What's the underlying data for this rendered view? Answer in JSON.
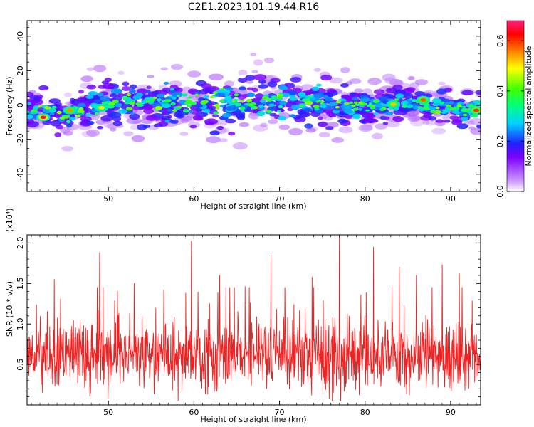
{
  "title": "C2E1.2023.101.19.44.R16",
  "chart_data": [
    {
      "type": "heatmap",
      "xlabel": "Height of straight line (km)",
      "ylabel": "Frequency (Hz)",
      "xlim": [
        40.5,
        93.5
      ],
      "ylim": [
        -50,
        49
      ],
      "x_ticks": [
        50,
        60,
        70,
        80,
        90
      ],
      "y_ticks": [
        -40,
        -20,
        0,
        20,
        40
      ],
      "colorbar": {
        "label": "Normalized spectral amplitude",
        "range": [
          0,
          0.68
        ],
        "ticks": [
          0.0,
          0.2,
          0.4,
          0.6
        ],
        "colormap": [
          "#ffffff",
          "#cc99ff",
          "#7f00ff",
          "#2020ff",
          "#00d4ff",
          "#00ff80",
          "#40ff00",
          "#ffff00",
          "#ff8000",
          "#ff0000",
          "#ff2080"
        ]
      },
      "band": {
        "center_hz": [
          {
            "x": 41,
            "y": -3
          },
          {
            "x": 45,
            "y": -6
          },
          {
            "x": 50,
            "y": 2
          },
          {
            "x": 55,
            "y": 1
          },
          {
            "x": 60,
            "y": 2
          },
          {
            "x": 65,
            "y": 1
          },
          {
            "x": 70,
            "y": 2
          },
          {
            "x": 75,
            "y": 1
          },
          {
            "x": 80,
            "y": -1
          },
          {
            "x": 85,
            "y": 2
          },
          {
            "x": 90,
            "y": -2
          },
          {
            "x": 93,
            "y": -3
          }
        ],
        "half_width_hz": [
          {
            "x": 41,
            "y": 9
          },
          {
            "x": 50,
            "y": 11
          },
          {
            "x": 60,
            "y": 14
          },
          {
            "x": 65,
            "y": 15
          },
          {
            "x": 70,
            "y": 14
          },
          {
            "x": 80,
            "y": 11
          },
          {
            "x": 93,
            "y": 9
          }
        ],
        "peaks": [
          {
            "x": 42.4,
            "y": -7,
            "v": 0.66
          },
          {
            "x": 45.5,
            "y": -3,
            "v": 0.55
          },
          {
            "x": 49.2,
            "y": -1.5,
            "v": 0.5
          },
          {
            "x": 83.3,
            "y": 0.5,
            "v": 0.52
          },
          {
            "x": 86.8,
            "y": 3,
            "v": 0.58
          },
          {
            "x": 93.0,
            "y": -3,
            "v": 0.6
          }
        ]
      }
    },
    {
      "type": "line",
      "xlabel": "Height of straight line (km)",
      "ylabel": "SNR (10 * v/v)",
      "scale_label": "(x10⁴)",
      "color": "#ee2222",
      "xlim": [
        40.5,
        93.5
      ],
      "ylim": [
        0,
        2.1
      ],
      "x_ticks": [
        50,
        60,
        70,
        80,
        90
      ],
      "y_ticks": [
        0.5,
        1.0,
        1.5,
        2.0
      ],
      "noise": {
        "baseline": 0.6,
        "spread": 0.35,
        "min": 0.05
      },
      "peaks": [
        {
          "x": 43.7,
          "y": 1.55
        },
        {
          "x": 49.0,
          "y": 1.88
        },
        {
          "x": 53.0,
          "y": 1.5
        },
        {
          "x": 56.5,
          "y": 1.42
        },
        {
          "x": 59.7,
          "y": 2.02
        },
        {
          "x": 63.0,
          "y": 1.6
        },
        {
          "x": 66.0,
          "y": 1.46
        },
        {
          "x": 69.0,
          "y": 1.84
        },
        {
          "x": 73.8,
          "y": 1.58
        },
        {
          "x": 77.0,
          "y": 2.08
        },
        {
          "x": 81.0,
          "y": 1.95
        },
        {
          "x": 84.0,
          "y": 1.7
        },
        {
          "x": 86.0,
          "y": 1.6
        },
        {
          "x": 89.0,
          "y": 1.73
        },
        {
          "x": 91.0,
          "y": 1.62
        }
      ]
    }
  ]
}
